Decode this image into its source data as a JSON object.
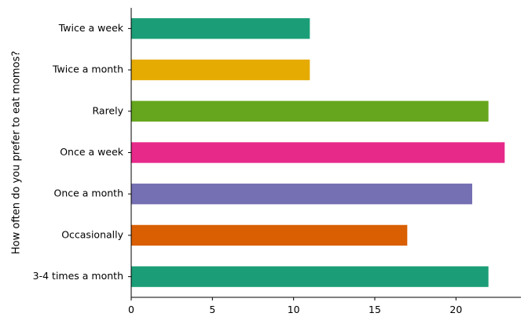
{
  "chart_data": {
    "type": "bar",
    "orientation": "horizontal",
    "categories": [
      "Twice a week",
      "Twice a month",
      "Rarely",
      "Once a week",
      "Once a month",
      "Occasionally",
      "3-4 times a month"
    ],
    "values": [
      11,
      11,
      22,
      23,
      21,
      17,
      22
    ],
    "colors": [
      "#1b9e77",
      "#e6ab02",
      "#66a61e",
      "#e7298a",
      "#7570b3",
      "#d95f02",
      "#1b9e77"
    ],
    "title": "",
    "xlabel": "",
    "ylabel": "How often do you prefer to eat momos?",
    "xlim": [
      0,
      24
    ],
    "xticks": [
      0,
      5,
      10,
      15,
      20
    ],
    "grid": false
  }
}
